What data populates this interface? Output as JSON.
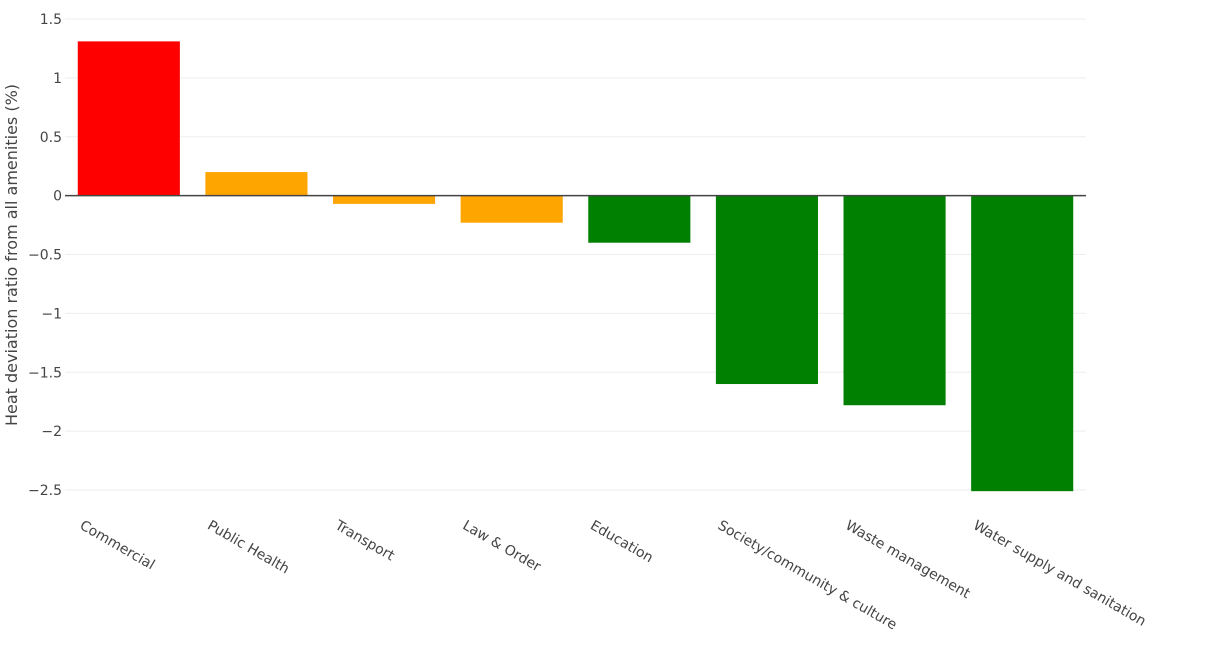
{
  "chart_data": {
    "type": "bar",
    "categories": [
      "Commercial",
      "Public Health",
      "Transport",
      "Law & Order",
      "Education",
      "Society/community & culture",
      "Waste management",
      "Water supply and sanitation"
    ],
    "values": [
      1.31,
      0.2,
      -0.07,
      -0.23,
      -0.4,
      -1.6,
      -1.78,
      -2.51
    ],
    "colors": [
      "#ff0000",
      "#ffa500",
      "#ffa500",
      "#ffa500",
      "#008000",
      "#008000",
      "#008000",
      "#008000"
    ],
    "title": "",
    "xlabel": "",
    "ylabel": "Heat deviation ratio from all amenities (%)",
    "ylim": [
      -2.5,
      1.5
    ],
    "yticks": [
      1.5,
      1,
      0.5,
      0,
      -0.5,
      -1,
      -1.5,
      -2,
      -2.5
    ],
    "ytick_labels": [
      "1.5",
      "1",
      "0.5",
      "0",
      "−0.5",
      "−1",
      "−1.5",
      "−2",
      "−2.5"
    ],
    "grid": true,
    "legend": "none"
  }
}
